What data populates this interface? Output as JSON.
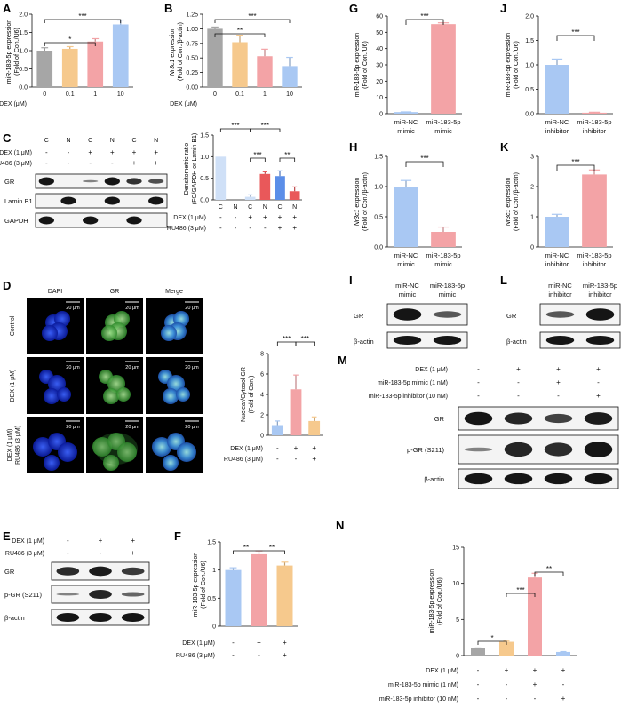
{
  "colors": {
    "gray": "#a6a6a6",
    "orange": "#f6c98d",
    "pink": "#f3a3a6",
    "blue": "#a9c8f3",
    "light_blue": "#cfe0f7",
    "dark_blue": "#5b8ee8",
    "red": "#e9585a",
    "lightpink": "#f8c6c7"
  },
  "panel_letters": [
    "A",
    "B",
    "C",
    "D",
    "E",
    "F",
    "G",
    "H",
    "I",
    "J",
    "K",
    "L",
    "M",
    "N"
  ],
  "common": {
    "dex_1um": "DEX (1 μM)",
    "ru486_3um": "RU486 (3 μM)",
    "dex_um": "DEX (μM)",
    "plus": "+",
    "minus": "-",
    "sig1": "*",
    "sig2": "**",
    "sig3": "***"
  },
  "blot_labels": {
    "gr": "GR",
    "lamin": "Lamin B1",
    "gapdh": "GAPDH",
    "pgr": "p-GR (S211)",
    "actin": "β-actin",
    "mimic1": "miR-183-5p mimic (1 nM)",
    "inhib10": "miR-183-5p inhibitor (10 nM)"
  },
  "C_lanes": [
    "C",
    "N",
    "C",
    "N",
    "C",
    "N"
  ],
  "D_labels": {
    "cols": [
      "DAPI",
      "GR",
      "Merge"
    ],
    "rows": [
      "Control",
      "DEX (1 μM)",
      "DEX (1 μM)",
      "RU486 (3 μM)"
    ],
    "scale": "20 μm"
  },
  "xlabels": {
    "nc_mimic_1": "miR-NC",
    "nc_mimic_2": "mimic",
    "mir_mimic_1": "miR-183-5p",
    "mir_mimic_2": "mimic",
    "nc_inh_1": "miR-NC",
    "nc_inh_2": "inhibitor",
    "mir_inh_1": "miR-183-5p",
    "mir_inh_2": "inhibitor"
  },
  "ylabels": {
    "mir_main": "miR-183-5p expression",
    "u6": "(Fold of Con./U6)",
    "nr3c1": "Nr3c1",
    "nr3c1_rest": " expression",
    "actin_fold": "(Fold of Con./β-actin)",
    "dens1": "Densitometric ratio",
    "dens2": "(FC/GAPDH or Lamin B1)",
    "ncr1": "Nuclear/Cytosol GR",
    "ncr2": "(Fold of Con.)"
  },
  "chart_data": [
    {
      "panel": "A",
      "type": "bar",
      "categories": [
        "0",
        "0.1",
        "1",
        "10"
      ],
      "values": [
        1.0,
        1.05,
        1.25,
        1.72
      ],
      "errors": [
        0.08,
        0.06,
        0.08,
        0.12
      ],
      "ylim": [
        0,
        2.0
      ],
      "yticks": [
        "0.0",
        "0.5",
        "1.0",
        "1.5",
        "2.0"
      ]
    },
    {
      "panel": "B",
      "type": "bar",
      "categories": [
        "0",
        "0.1",
        "1",
        "10"
      ],
      "values": [
        1.0,
        0.77,
        0.53,
        0.36
      ],
      "errors": [
        0.03,
        0.12,
        0.12,
        0.15
      ],
      "ylim": [
        0,
        1.25
      ],
      "yticks": [
        "0.00",
        "0.25",
        "0.50",
        "0.75",
        "1.00",
        "1.25"
      ]
    },
    {
      "panel": "C",
      "type": "bar",
      "categories": [
        "C",
        "N",
        "C",
        "N",
        "C",
        "N"
      ],
      "values": [
        1.0,
        0.0,
        0.07,
        0.6,
        0.55,
        0.2
      ],
      "errors": [
        0,
        0,
        0.05,
        0.05,
        0.12,
        0.1
      ],
      "ylim": [
        0,
        1.5
      ],
      "yticks": [
        "0.0",
        "0.5",
        "1.0",
        "1.5"
      ]
    },
    {
      "panel": "D",
      "type": "bar",
      "categories": [
        "Control",
        "DEX",
        "DEX+RU486"
      ],
      "values": [
        1.0,
        4.5,
        1.4
      ],
      "errors": [
        0.4,
        1.4,
        0.4
      ],
      "ylim": [
        0,
        8
      ],
      "yticks": [
        "0",
        "2",
        "4",
        "6",
        "8"
      ]
    },
    {
      "panel": "F",
      "type": "bar",
      "categories": [
        "Control",
        "DEX",
        "DEX+RU486"
      ],
      "values": [
        1.0,
        1.28,
        1.08
      ],
      "errors": [
        0.04,
        0.06,
        0.06
      ],
      "ylim": [
        0,
        1.5
      ],
      "yticks": [
        "0",
        "0.5",
        "1",
        "1.5"
      ]
    },
    {
      "panel": "G",
      "type": "bar",
      "categories": [
        "miR-NC mimic",
        "miR-183-5p mimic"
      ],
      "values": [
        1.0,
        55.0
      ],
      "errors": [
        0.1,
        0.8
      ],
      "ylim": [
        0,
        60
      ],
      "yticks": [
        "0",
        "10",
        "20",
        "30",
        "40",
        "50",
        "60"
      ]
    },
    {
      "panel": "H",
      "type": "bar",
      "categories": [
        "miR-NC mimic",
        "miR-183-5p mimic"
      ],
      "values": [
        1.0,
        0.25
      ],
      "errors": [
        0.1,
        0.08
      ],
      "ylim": [
        0,
        1.5
      ],
      "yticks": [
        "0.0",
        "0.5",
        "1.0",
        "1.5"
      ]
    },
    {
      "panel": "J",
      "type": "bar",
      "categories": [
        "miR-NC inhibitor",
        "miR-183-5p inhibitor"
      ],
      "values": [
        1.0,
        0.02
      ],
      "errors": [
        0.12,
        0.01
      ],
      "ylim": [
        0,
        2.0
      ],
      "yticks": [
        "0.0",
        "0.5",
        "1.0",
        "1.5",
        "2.0"
      ]
    },
    {
      "panel": "K",
      "type": "bar",
      "categories": [
        "miR-NC inhibitor",
        "miR-183-5p inhibitor"
      ],
      "values": [
        1.0,
        2.4
      ],
      "errors": [
        0.08,
        0.15
      ],
      "ylim": [
        0,
        3
      ],
      "yticks": [
        "0",
        "1",
        "2",
        "3"
      ]
    },
    {
      "panel": "N",
      "type": "bar",
      "categories": [
        "Control",
        "DEX",
        "DEX+mimic",
        "DEX+inhibitor"
      ],
      "values": [
        1.0,
        1.9,
        10.8,
        0.5
      ],
      "errors": [
        0.05,
        0.1,
        0.6,
        0.05
      ],
      "ylim": [
        0,
        15
      ],
      "yticks": [
        "0",
        "5",
        "10",
        "15"
      ]
    }
  ]
}
